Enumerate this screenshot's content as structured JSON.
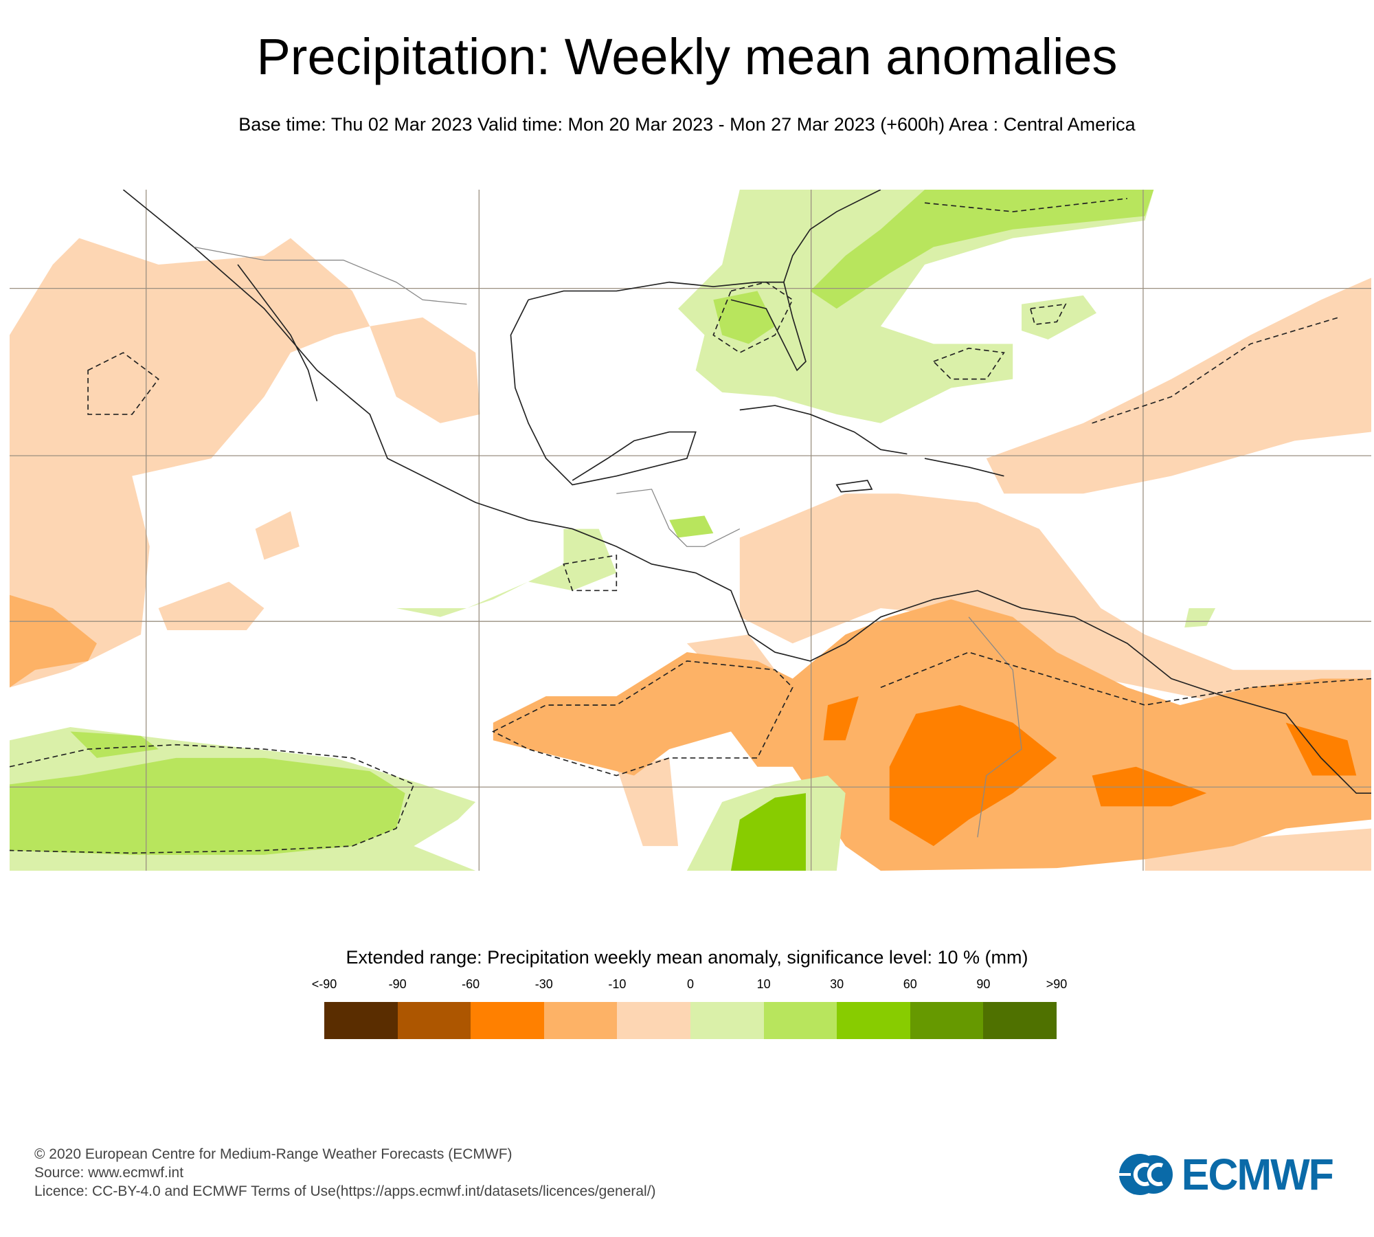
{
  "header": {
    "title": "Precipitation: Weekly mean anomalies",
    "subtitle": "Base time: Thu 02 Mar 2023 Valid time: Mon 20 Mar 2023 - Mon 27 Mar 2023 (+600h) Area : Central America"
  },
  "legend": {
    "title": "Extended range: Precipitation weekly mean anomaly, significance level: 10 % (mm)",
    "ticks": [
      "<-90",
      "-90",
      "-60",
      "-30",
      "-10",
      "0",
      "10",
      "30",
      "60",
      "90",
      ">90"
    ],
    "colors": [
      "#5a2d00",
      "#ad5600",
      "#ff8000",
      "#fdb266",
      "#fdd6b3",
      "#daf0a9",
      "#b8e55d",
      "#88cc00",
      "#669900",
      "#4f7100"
    ]
  },
  "footer": {
    "copyright": "© 2020 European Centre for Medium-Range Weather Forecasts (ECMWF)",
    "source": "Source: www.ecmwf.int",
    "licence": "Licence: CC-BY-4.0 and ECMWF Terms of Use(https://apps.ecmwf.int/datasets/licences/general/)"
  },
  "logo": {
    "text": "ECMWF",
    "color": "#0a6aa8"
  }
}
